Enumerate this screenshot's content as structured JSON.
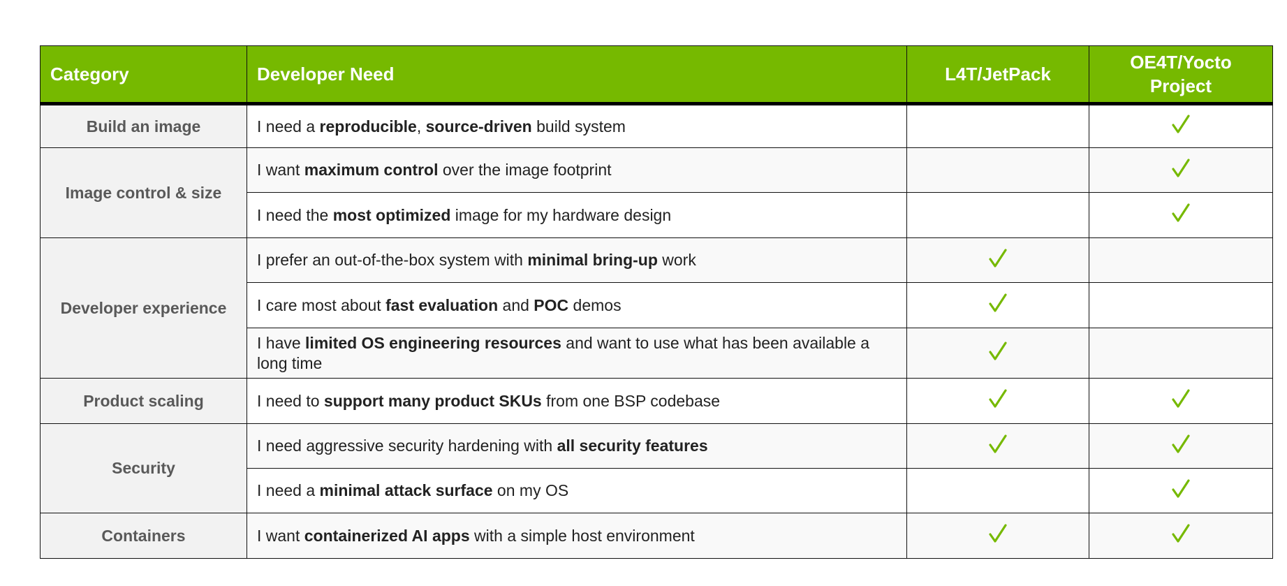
{
  "header": {
    "category": "Category",
    "need": "Developer Need",
    "l4t": "L4T/JetPack",
    "oe4t": "OE4T/Yocto Project"
  },
  "check_color": "#76b900",
  "groups": [
    {
      "category": "Build an image",
      "rows": [
        {
          "need": [
            {
              "text": "I need a "
            },
            {
              "text": "reproducible",
              "bold": true
            },
            {
              "text": ", "
            },
            {
              "text": "source-driven",
              "bold": true
            },
            {
              "text": " build system"
            }
          ],
          "l4t": false,
          "oe4t": true
        }
      ]
    },
    {
      "category": "Image control & size",
      "rows": [
        {
          "need": [
            {
              "text": "I want "
            },
            {
              "text": "maximum control",
              "bold": true
            },
            {
              "text": " over the image footprint"
            }
          ],
          "l4t": false,
          "oe4t": true
        },
        {
          "need": [
            {
              "text": "I need the "
            },
            {
              "text": "most optimized",
              "bold": true
            },
            {
              "text": " image for my hardware design"
            }
          ],
          "l4t": false,
          "oe4t": true
        }
      ]
    },
    {
      "category": "Developer experience",
      "rows": [
        {
          "need": [
            {
              "text": "I prefer an out-of-the-box system with "
            },
            {
              "text": "minimal bring-up",
              "bold": true
            },
            {
              "text": " work"
            }
          ],
          "l4t": true,
          "oe4t": false
        },
        {
          "need": [
            {
              "text": "I care most about "
            },
            {
              "text": "fast evaluation",
              "bold": true
            },
            {
              "text": " and "
            },
            {
              "text": "POC",
              "bold": true
            },
            {
              "text": " demos"
            }
          ],
          "l4t": true,
          "oe4t": false
        },
        {
          "need": [
            {
              "text": "I have "
            },
            {
              "text": "limited OS engineering resources",
              "bold": true
            },
            {
              "text": " and want to use what has been available a long time"
            }
          ],
          "l4t": true,
          "oe4t": false
        }
      ]
    },
    {
      "category": "Product scaling",
      "rows": [
        {
          "need": [
            {
              "text": "I need to "
            },
            {
              "text": "support many product SKUs",
              "bold": true
            },
            {
              "text": " from one BSP codebase"
            }
          ],
          "l4t": true,
          "oe4t": true
        }
      ]
    },
    {
      "category": "Security",
      "rows": [
        {
          "need": [
            {
              "text": "I need aggressive security hardening with "
            },
            {
              "text": "all security features",
              "bold": true
            }
          ],
          "l4t": true,
          "oe4t": true
        },
        {
          "need": [
            {
              "text": "I need a "
            },
            {
              "text": "minimal attack surface",
              "bold": true
            },
            {
              "text": " on my OS"
            }
          ],
          "l4t": false,
          "oe4t": true
        }
      ]
    },
    {
      "category": "Containers",
      "rows": [
        {
          "need": [
            {
              "text": "I want "
            },
            {
              "text": "containerized AI apps",
              "bold": true
            },
            {
              "text": " with a simple host environment"
            }
          ],
          "l4t": true,
          "oe4t": true
        }
      ]
    }
  ]
}
